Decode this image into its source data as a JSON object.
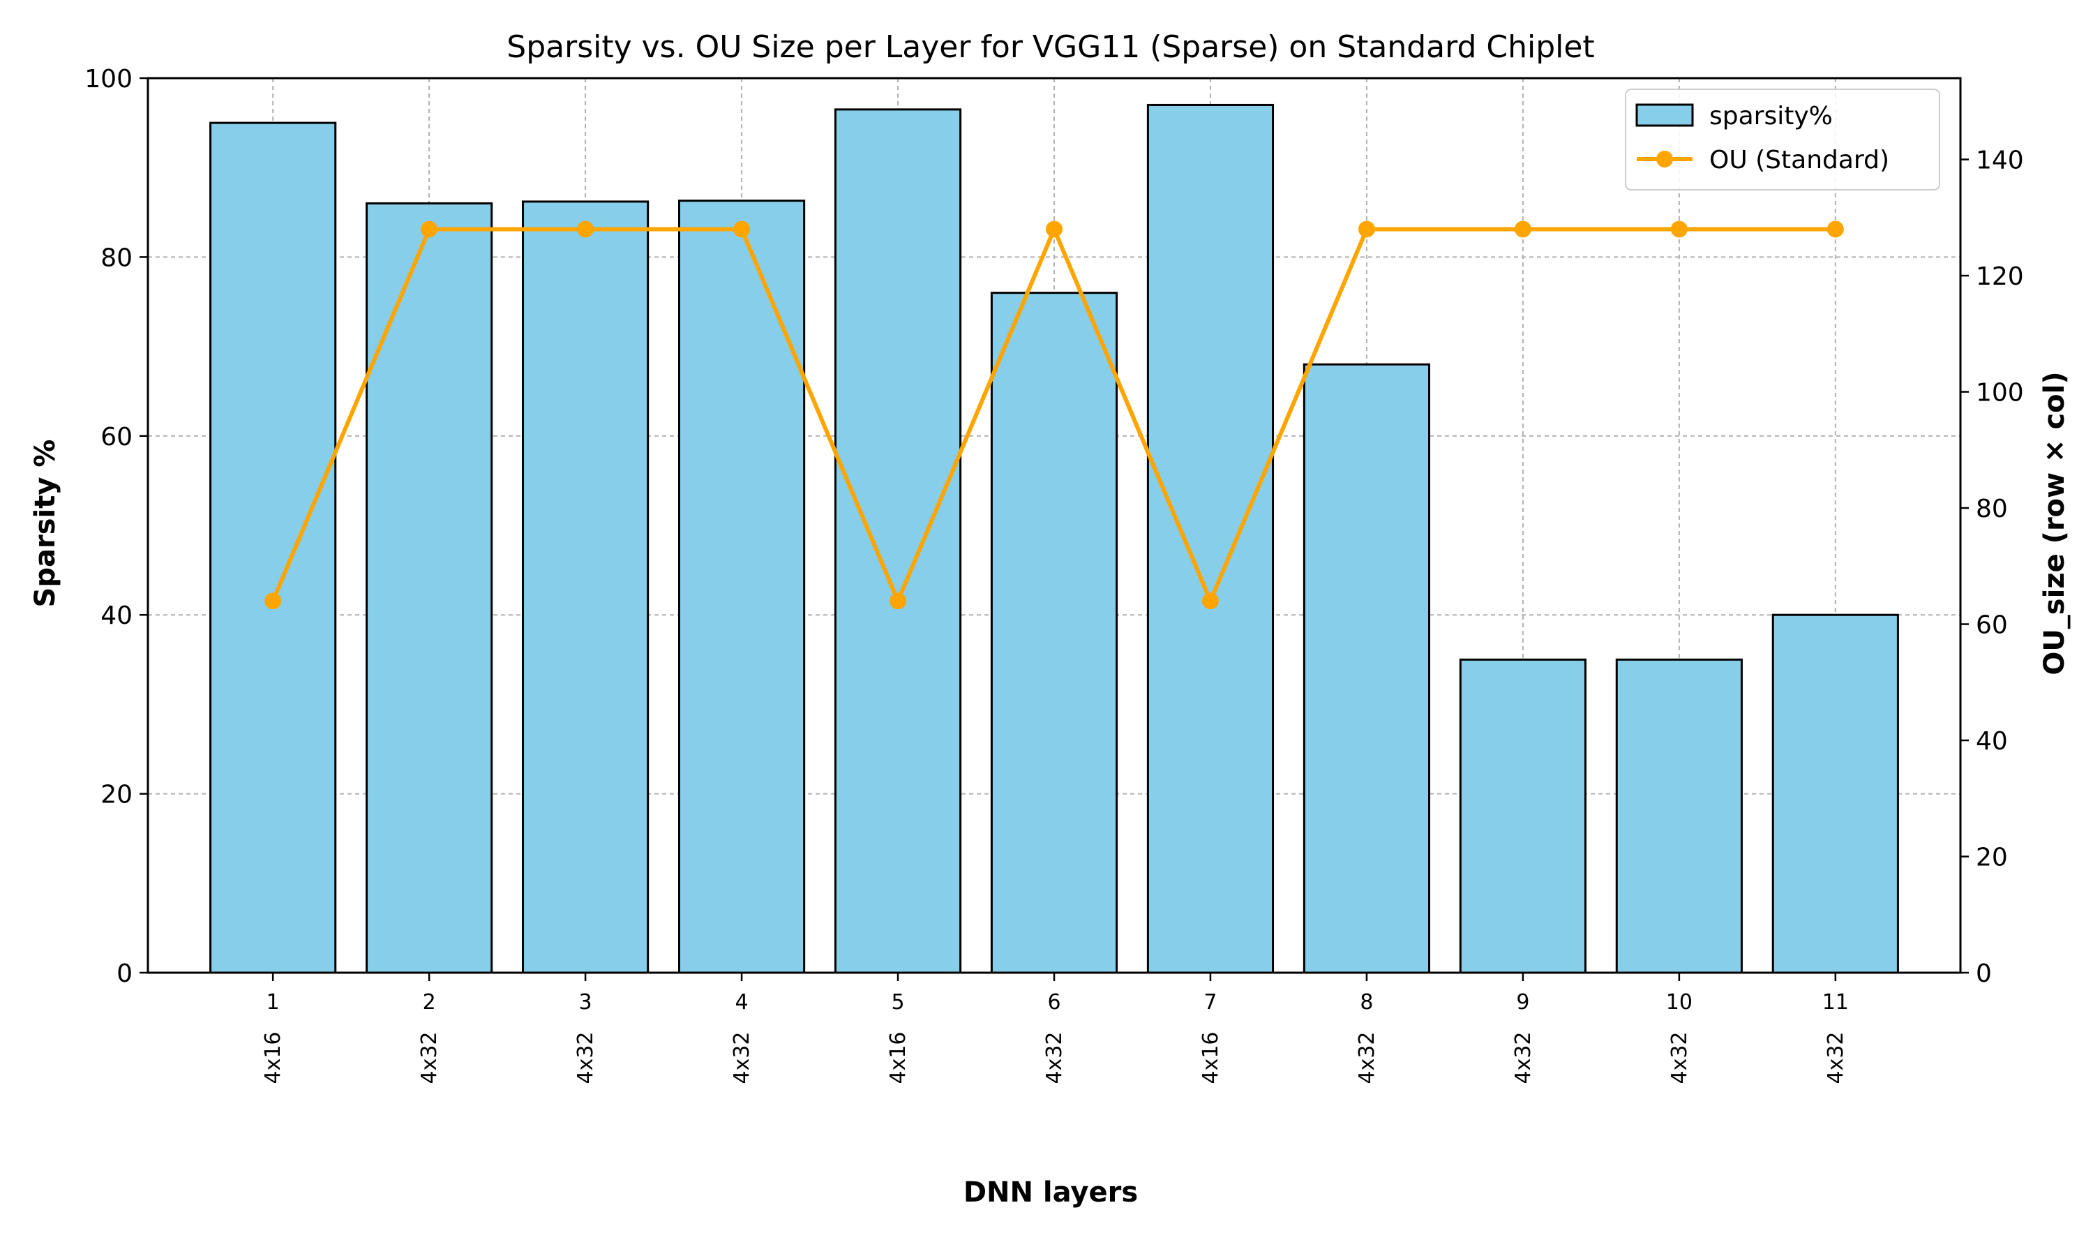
{
  "chart_data": {
    "type": "bar",
    "title": "Sparsity vs. OU Size per Layer for VGG11 (Sparse) on Standard Chiplet",
    "xlabel": "DNN layers",
    "ylabel": "Sparsity %",
    "y2label": "OU_size (row × col)",
    "categories": [
      "1",
      "2",
      "3",
      "4",
      "5",
      "6",
      "7",
      "8",
      "9",
      "10",
      "11"
    ],
    "category_sublabels": [
      "4x16",
      "4x32",
      "4x32",
      "4x32",
      "4x16",
      "4x32",
      "4x16",
      "4x32",
      "4x32",
      "4x32",
      "4x32"
    ],
    "ylim": [
      0,
      100
    ],
    "y2lim": [
      0,
      154
    ],
    "yticks": [
      0,
      20,
      40,
      60,
      80,
      100
    ],
    "y2ticks": [
      0,
      20,
      40,
      60,
      80,
      100,
      120,
      140
    ],
    "grid": true,
    "legend_position": "top-right",
    "series": [
      {
        "name": "sparsity%",
        "kind": "bar",
        "axis": "left",
        "color": "#87ceeb",
        "values": [
          95.0,
          86.0,
          86.2,
          86.3,
          96.5,
          76.0,
          97.0,
          68.0,
          35.0,
          35.0,
          40.0
        ]
      },
      {
        "name": "OU (Standard)",
        "kind": "line",
        "axis": "right",
        "color": "#ffa500",
        "values": [
          64,
          128,
          128,
          128,
          64,
          128,
          64,
          128,
          128,
          128,
          128
        ]
      }
    ]
  }
}
